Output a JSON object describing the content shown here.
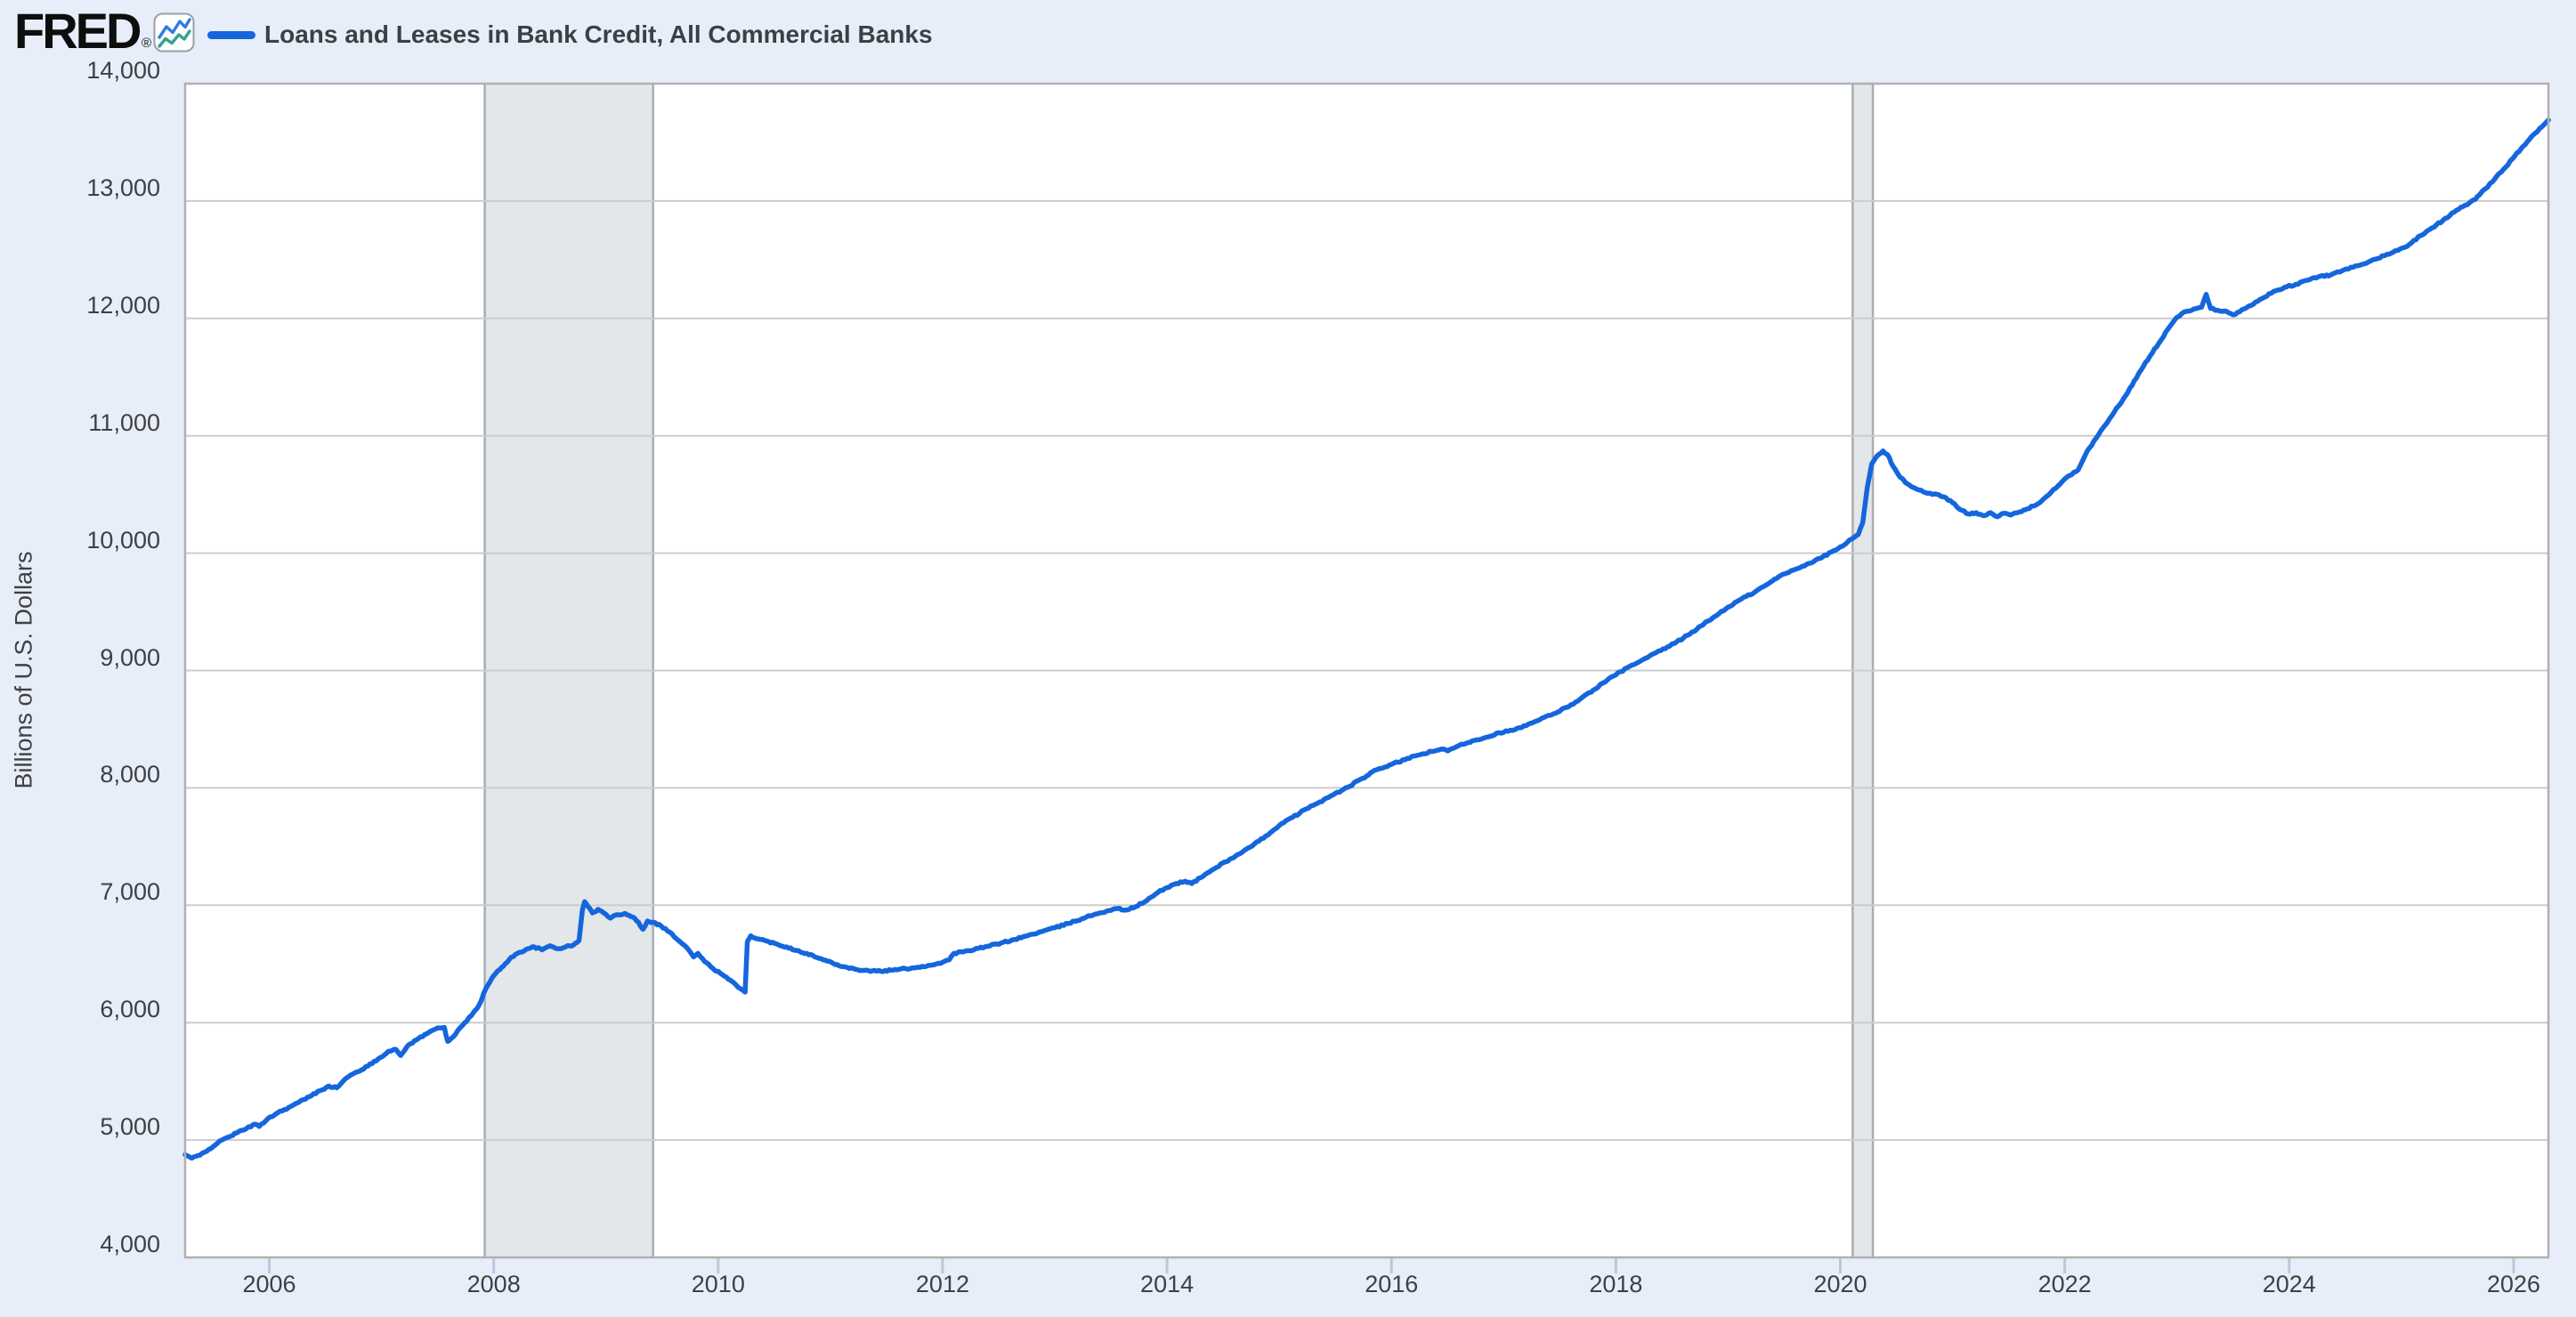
{
  "header": {
    "logo_text": "FRED",
    "registered_mark": "®",
    "legend_label": "Loans and Leases in Bank Credit, All Commercial Banks"
  },
  "axes": {
    "y_label": "Billions of U.S. Dollars",
    "y_tick_labels": [
      "14,000",
      "13,000",
      "12,000",
      "11,000",
      "10,000",
      "9,000",
      "8,000",
      "7,000",
      "6,000",
      "5,000",
      "4,000"
    ],
    "x_tick_labels": [
      "2006",
      "2008",
      "2010",
      "2012",
      "2014",
      "2016",
      "2018",
      "2020",
      "2022",
      "2024",
      "2026"
    ]
  },
  "colors": {
    "page_bg": "#e7eefa",
    "plot_bg": "#ffffff",
    "gridline": "#cccccc",
    "plot_border": "#b0b0b0",
    "recession_fill": "#e3e7ea",
    "recession_edge": "#a8aeb4",
    "tick_stub": "#bac7e0",
    "text": "#3e4043",
    "series_blue": "#1566dd",
    "icon_blue": "#2f7de0",
    "icon_teal": "#35a08e"
  },
  "chart_data": {
    "type": "line",
    "title": "Loans and Leases in Bank Credit, All Commercial Banks",
    "xlabel": "",
    "ylabel": "Billions of U.S. Dollars",
    "x_range": [
      2005.25,
      2026.31
    ],
    "y_range": [
      4000,
      14000
    ],
    "x_ticks": [
      2006,
      2008,
      2010,
      2012,
      2014,
      2016,
      2018,
      2020,
      2022,
      2024,
      2026
    ],
    "y_ticks": [
      14000,
      13000,
      12000,
      11000,
      10000,
      9000,
      8000,
      7000,
      6000,
      5000,
      4000
    ],
    "grid": true,
    "legend_position": "top-left",
    "recession_bands": [
      [
        2007.92,
        2009.42
      ],
      [
        2020.11,
        2020.29
      ]
    ],
    "series": [
      {
        "name": "Loans and Leases in Bank Credit, All Commercial Banks",
        "color": "#1566dd",
        "units": "Billions of U.S. Dollars",
        "points": [
          [
            2005.25,
            4875
          ],
          [
            2005.31,
            4845
          ],
          [
            2005.38,
            4870
          ],
          [
            2005.46,
            4920
          ],
          [
            2005.54,
            4975
          ],
          [
            2005.62,
            5020
          ],
          [
            2005.71,
            5060
          ],
          [
            2005.8,
            5100
          ],
          [
            2005.87,
            5135
          ],
          [
            2005.91,
            5115
          ],
          [
            2005.99,
            5185
          ],
          [
            2006.08,
            5235
          ],
          [
            2006.17,
            5275
          ],
          [
            2006.26,
            5320
          ],
          [
            2006.36,
            5370
          ],
          [
            2006.45,
            5420
          ],
          [
            2006.53,
            5460
          ],
          [
            2006.6,
            5445
          ],
          [
            2006.69,
            5530
          ],
          [
            2006.78,
            5580
          ],
          [
            2006.88,
            5630
          ],
          [
            2006.97,
            5690
          ],
          [
            2007.06,
            5755
          ],
          [
            2007.13,
            5770
          ],
          [
            2007.17,
            5720
          ],
          [
            2007.24,
            5810
          ],
          [
            2007.33,
            5865
          ],
          [
            2007.42,
            5915
          ],
          [
            2007.5,
            5955
          ],
          [
            2007.56,
            5960
          ],
          [
            2007.59,
            5840
          ],
          [
            2007.64,
            5880
          ],
          [
            2007.72,
            5975
          ],
          [
            2007.8,
            6060
          ],
          [
            2007.87,
            6150
          ],
          [
            2007.93,
            6290
          ],
          [
            2008.0,
            6400
          ],
          [
            2008.07,
            6470
          ],
          [
            2008.14,
            6540
          ],
          [
            2008.21,
            6590
          ],
          [
            2008.29,
            6625
          ],
          [
            2008.36,
            6645
          ],
          [
            2008.43,
            6620
          ],
          [
            2008.5,
            6655
          ],
          [
            2008.57,
            6630
          ],
          [
            2008.64,
            6645
          ],
          [
            2008.71,
            6660
          ],
          [
            2008.76,
            6700
          ],
          [
            2008.79,
            6960
          ],
          [
            2008.81,
            7030
          ],
          [
            2008.84,
            6990
          ],
          [
            2008.88,
            6935
          ],
          [
            2008.93,
            6965
          ],
          [
            2008.98,
            6935
          ],
          [
            2009.04,
            6890
          ],
          [
            2009.1,
            6920
          ],
          [
            2009.17,
            6930
          ],
          [
            2009.24,
            6900
          ],
          [
            2009.29,
            6855
          ],
          [
            2009.33,
            6795
          ],
          [
            2009.37,
            6865
          ],
          [
            2009.42,
            6855
          ],
          [
            2009.49,
            6825
          ],
          [
            2009.57,
            6770
          ],
          [
            2009.64,
            6705
          ],
          [
            2009.72,
            6640
          ],
          [
            2009.78,
            6560
          ],
          [
            2009.82,
            6590
          ],
          [
            2009.88,
            6520
          ],
          [
            2009.95,
            6465
          ],
          [
            2010.02,
            6420
          ],
          [
            2010.09,
            6370
          ],
          [
            2010.16,
            6320
          ],
          [
            2010.22,
            6275
          ],
          [
            2010.24,
            6260
          ],
          [
            2010.26,
            6690
          ],
          [
            2010.29,
            6740
          ],
          [
            2010.34,
            6715
          ],
          [
            2010.43,
            6695
          ],
          [
            2010.52,
            6670
          ],
          [
            2010.61,
            6645
          ],
          [
            2010.7,
            6615
          ],
          [
            2010.79,
            6590
          ],
          [
            2010.88,
            6555
          ],
          [
            2010.97,
            6525
          ],
          [
            2011.06,
            6495
          ],
          [
            2011.15,
            6470
          ],
          [
            2011.24,
            6452
          ],
          [
            2011.34,
            6442
          ],
          [
            2011.45,
            6438
          ],
          [
            2011.56,
            6448
          ],
          [
            2011.67,
            6460
          ],
          [
            2011.78,
            6472
          ],
          [
            2011.89,
            6488
          ],
          [
            2012.0,
            6515
          ],
          [
            2012.06,
            6535
          ],
          [
            2012.1,
            6590
          ],
          [
            2012.18,
            6602
          ],
          [
            2012.28,
            6622
          ],
          [
            2012.4,
            6650
          ],
          [
            2012.52,
            6678
          ],
          [
            2012.64,
            6708
          ],
          [
            2012.76,
            6742
          ],
          [
            2012.88,
            6775
          ],
          [
            2013.0,
            6808
          ],
          [
            2013.12,
            6845
          ],
          [
            2013.24,
            6885
          ],
          [
            2013.36,
            6925
          ],
          [
            2013.48,
            6955
          ],
          [
            2013.56,
            6972
          ],
          [
            2013.63,
            6958
          ],
          [
            2013.72,
            6988
          ],
          [
            2013.82,
            7040
          ],
          [
            2013.92,
            7110
          ],
          [
            2014.0,
            7150
          ],
          [
            2014.08,
            7185
          ],
          [
            2014.16,
            7205
          ],
          [
            2014.22,
            7185
          ],
          [
            2014.3,
            7235
          ],
          [
            2014.4,
            7300
          ],
          [
            2014.52,
            7370
          ],
          [
            2014.64,
            7435
          ],
          [
            2014.76,
            7505
          ],
          [
            2014.88,
            7590
          ],
          [
            2015.0,
            7680
          ],
          [
            2015.12,
            7750
          ],
          [
            2015.24,
            7820
          ],
          [
            2015.36,
            7880
          ],
          [
            2015.48,
            7940
          ],
          [
            2015.61,
            8005
          ],
          [
            2015.74,
            8080
          ],
          [
            2015.87,
            8155
          ],
          [
            2016.0,
            8200
          ],
          [
            2016.12,
            8240
          ],
          [
            2016.24,
            8280
          ],
          [
            2016.36,
            8310
          ],
          [
            2016.44,
            8330
          ],
          [
            2016.5,
            8315
          ],
          [
            2016.6,
            8360
          ],
          [
            2016.72,
            8400
          ],
          [
            2016.84,
            8430
          ],
          [
            2016.96,
            8470
          ],
          [
            2017.08,
            8490
          ],
          [
            2017.2,
            8530
          ],
          [
            2017.32,
            8580
          ],
          [
            2017.44,
            8630
          ],
          [
            2017.56,
            8685
          ],
          [
            2017.68,
            8755
          ],
          [
            2017.8,
            8835
          ],
          [
            2017.92,
            8915
          ],
          [
            2018.04,
            8990
          ],
          [
            2018.16,
            9050
          ],
          [
            2018.28,
            9110
          ],
          [
            2018.4,
            9170
          ],
          [
            2018.52,
            9230
          ],
          [
            2018.64,
            9300
          ],
          [
            2018.76,
            9380
          ],
          [
            2018.88,
            9460
          ],
          [
            2019.0,
            9540
          ],
          [
            2019.12,
            9610
          ],
          [
            2019.24,
            9670
          ],
          [
            2019.36,
            9740
          ],
          [
            2019.47,
            9810
          ],
          [
            2019.58,
            9855
          ],
          [
            2019.7,
            9905
          ],
          [
            2019.82,
            9955
          ],
          [
            2019.92,
            10010
          ],
          [
            2020.02,
            10060
          ],
          [
            2020.1,
            10120
          ],
          [
            2020.16,
            10160
          ],
          [
            2020.2,
            10260
          ],
          [
            2020.24,
            10560
          ],
          [
            2020.28,
            10760
          ],
          [
            2020.33,
            10830
          ],
          [
            2020.38,
            10870
          ],
          [
            2020.42,
            10840
          ],
          [
            2020.47,
            10740
          ],
          [
            2020.53,
            10650
          ],
          [
            2020.6,
            10590
          ],
          [
            2020.68,
            10545
          ],
          [
            2020.76,
            10515
          ],
          [
            2020.84,
            10505
          ],
          [
            2020.92,
            10480
          ],
          [
            2021.0,
            10430
          ],
          [
            2021.07,
            10370
          ],
          [
            2021.14,
            10335
          ],
          [
            2021.21,
            10345
          ],
          [
            2021.27,
            10320
          ],
          [
            2021.34,
            10345
          ],
          [
            2021.4,
            10310
          ],
          [
            2021.46,
            10340
          ],
          [
            2021.52,
            10325
          ],
          [
            2021.58,
            10345
          ],
          [
            2021.65,
            10370
          ],
          [
            2021.72,
            10400
          ],
          [
            2021.8,
            10450
          ],
          [
            2021.88,
            10520
          ],
          [
            2021.96,
            10590
          ],
          [
            2022.04,
            10660
          ],
          [
            2022.12,
            10710
          ],
          [
            2022.2,
            10870
          ],
          [
            2022.28,
            10980
          ],
          [
            2022.36,
            11090
          ],
          [
            2022.44,
            11200
          ],
          [
            2022.52,
            11310
          ],
          [
            2022.6,
            11430
          ],
          [
            2022.68,
            11560
          ],
          [
            2022.76,
            11680
          ],
          [
            2022.84,
            11790
          ],
          [
            2022.92,
            11910
          ],
          [
            2023.0,
            12010
          ],
          [
            2023.08,
            12060
          ],
          [
            2023.15,
            12080
          ],
          [
            2023.22,
            12095
          ],
          [
            2023.26,
            12205
          ],
          [
            2023.3,
            12085
          ],
          [
            2023.36,
            12070
          ],
          [
            2023.44,
            12060
          ],
          [
            2023.5,
            12030
          ],
          [
            2023.58,
            12075
          ],
          [
            2023.66,
            12110
          ],
          [
            2023.76,
            12170
          ],
          [
            2023.86,
            12230
          ],
          [
            2023.96,
            12265
          ],
          [
            2024.06,
            12290
          ],
          [
            2024.16,
            12325
          ],
          [
            2024.26,
            12355
          ],
          [
            2024.37,
            12370
          ],
          [
            2024.47,
            12405
          ],
          [
            2024.57,
            12435
          ],
          [
            2024.67,
            12465
          ],
          [
            2024.77,
            12505
          ],
          [
            2024.87,
            12545
          ],
          [
            2024.97,
            12580
          ],
          [
            2025.07,
            12630
          ],
          [
            2025.17,
            12705
          ],
          [
            2025.27,
            12770
          ],
          [
            2025.37,
            12835
          ],
          [
            2025.47,
            12905
          ],
          [
            2025.57,
            12965
          ],
          [
            2025.66,
            13015
          ],
          [
            2025.75,
            13105
          ],
          [
            2025.83,
            13185
          ],
          [
            2025.91,
            13270
          ],
          [
            2025.99,
            13360
          ],
          [
            2026.07,
            13450
          ],
          [
            2026.14,
            13525
          ],
          [
            2026.21,
            13590
          ],
          [
            2026.27,
            13650
          ],
          [
            2026.31,
            13690
          ]
        ]
      }
    ]
  }
}
